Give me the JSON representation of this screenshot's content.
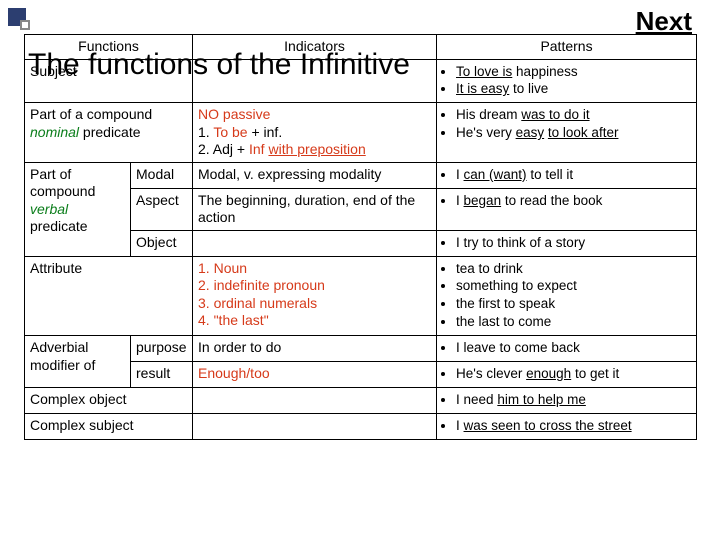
{
  "next_label": "Next",
  "overlay_title": "The functions of the Infinitive",
  "header": {
    "c1": "Functions",
    "c2": "Indicators",
    "c3": "Patterns"
  },
  "rows": {
    "subject": {
      "func": "Subject",
      "p1a": "To love is",
      "p1b": " happiness",
      "p2a": "It is easy",
      "p2b": " to live"
    },
    "nominal": {
      "func_a": "Part of a compound ",
      "func_b": "nominal",
      "func_c": " predicate",
      "ind_a": "NO passive",
      "ind_b": "1. ",
      "ind_b2": "To be",
      "ind_b3": " + inf.",
      "ind_c": "2. Adj + ",
      "ind_c2": "Inf ",
      "ind_c3": "with preposition",
      "p1a": "His dream ",
      "p1b": "was to do it",
      "p2a": "He's very ",
      "p2b": "easy",
      "p2c": " ",
      "p2d": "to look after"
    },
    "verbal": {
      "func_a": "Part of compound ",
      "func_b": "verbal",
      "func_c": " predicate",
      "modal": {
        "sub": "Modal",
        "ind": "Modal, v. expressing modality",
        "pa": "I ",
        "pb": "can (want)",
        "pc": " to tell it"
      },
      "aspect": {
        "sub": "Aspect",
        "ind": "The beginning, duration, end of the action",
        "pa": "I ",
        "pb": "began",
        "pc": " to read the book"
      },
      "object": {
        "sub": "Object",
        "p": "I try to think of a story"
      }
    },
    "attribute": {
      "func": "Attribute",
      "i1": "1. Noun",
      "i2": "2. indefinite pronoun",
      "i3": "3. ordinal numerals",
      "i4": "4. \"the last\"",
      "p1": "tea to drink",
      "p2": "something to expect",
      "p3": "the first to speak",
      "p4": "the last to come"
    },
    "adv": {
      "func": "Adverbial modifier of",
      "purpose": {
        "sub": "purpose",
        "ind": "In order to do",
        "p": "I leave to come back"
      },
      "result": {
        "sub": "result",
        "ind": "Enough/too",
        "pa": "He's clever ",
        "pb": "enough",
        "pc": " to get it"
      }
    },
    "cobj": {
      "func": "Complex object",
      "pa": "I need ",
      "pb": "him to help me"
    },
    "csubj": {
      "func": "Complex subject",
      "pa": "I ",
      "pb": "was seen to cross the street"
    }
  },
  "colors": {
    "red": "#d63a1a",
    "green": "#0a7d1a",
    "border": "#000000",
    "bg": "#ffffff"
  }
}
